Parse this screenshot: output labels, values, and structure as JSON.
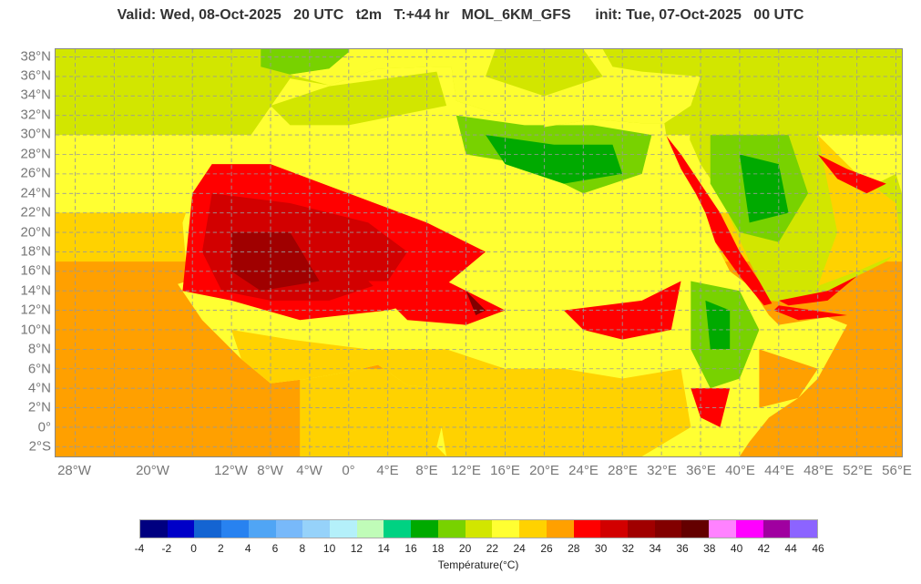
{
  "header": {
    "title": "Valid: Wed, 08-Oct-2025   20 UTC   t2m   T:+44 hr   MOL_6KM_GFS      init: Tue, 07-Oct-2025   00 UTC"
  },
  "map": {
    "lat_labels": [
      "38°N",
      "36°N",
      "34°N",
      "32°N",
      "30°N",
      "28°N",
      "26°N",
      "24°N",
      "22°N",
      "20°N",
      "18°N",
      "16°N",
      "14°N",
      "12°N",
      "10°N",
      "8°N",
      "6°N",
      "4°N",
      "2°N",
      "0°",
      "2°S"
    ],
    "lat_values": [
      38,
      36,
      34,
      32,
      30,
      28,
      26,
      24,
      22,
      20,
      18,
      16,
      14,
      12,
      10,
      8,
      6,
      4,
      2,
      0,
      -2
    ],
    "lon_labels": [
      "28°W",
      "20°W",
      "12°W",
      "8°W",
      "4°W",
      "0°",
      "4°E",
      "8°E",
      "12°E",
      "16°E",
      "20°E",
      "24°E",
      "28°E",
      "32°E",
      "36°E",
      "40°E",
      "44°E",
      "48°E",
      "52°E",
      "56°E"
    ],
    "lon_values": [
      -28,
      -20,
      -12,
      -8,
      -4,
      0,
      4,
      8,
      12,
      16,
      20,
      24,
      28,
      32,
      36,
      40,
      44,
      48,
      52,
      56
    ]
  },
  "colorbar": {
    "label": "Température(°C)",
    "ticks": [
      "-4",
      "-2",
      "0",
      "2",
      "4",
      "6",
      "8",
      "10",
      "12",
      "14",
      "16",
      "18",
      "20",
      "22",
      "24",
      "26",
      "28",
      "30",
      "32",
      "34",
      "36",
      "38",
      "40",
      "42",
      "44",
      "46"
    ],
    "colors": [
      "#000080",
      "#0000c8",
      "#1464d2",
      "#2882f0",
      "#50a5f5",
      "#78b9fa",
      "#96d2fa",
      "#b4f0fa",
      "#c0fcb8",
      "#00d282",
      "#00aa00",
      "#78d200",
      "#d2e600",
      "#ffff32",
      "#ffd200",
      "#ffa000",
      "#ff0000",
      "#d20000",
      "#a00000",
      "#820000",
      "#640000",
      "#ff82ff",
      "#ff00ff",
      "#a000a0",
      "#8c64ff"
    ]
  }
}
